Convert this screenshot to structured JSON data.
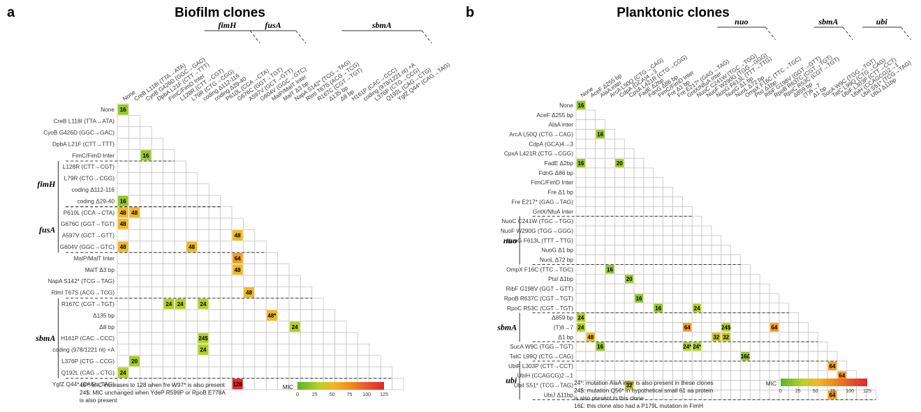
{
  "panels": [
    {
      "letter": "a",
      "title": "Biofilm clones",
      "rows": [
        "None",
        "CreB  L118I (TTA→ATA)",
        "CyoB  G426D (GGC→GAC)",
        "DpbA  L21F (CTT→TTT)",
        "FimC/FimD Inter",
        "L128R (CTT→CGT)",
        "L79R (CTG→CGG)",
        "coding  Δ112-116",
        "coding Δ29-40",
        "P610L (CCA→CTA)",
        "G676C (GGT→TGT)",
        "A597V (GCT→GTT)",
        "G604V (GGC→GTC)",
        "MalP/MalT Inter",
        "MalT  Δ3 bp",
        "NapA  S142* (TCG→TAG)",
        "RlmI  T67S (ACG→TCG)",
        "R167C (CGT→TGT)",
        "Δ135 bp",
        "Δ8 bp",
        "H161P (CAC→CCC)",
        "coding (978/1221 nt) +A",
        "L376P (CTG→CCG)",
        "Q192L (CAG→CTG)",
        "YgfZ  Q44* (CAG→TAG)"
      ],
      "columns": [
        "None",
        "CreB  L118I (TTA→ATA)",
        "CyoB  G426D (GGC→GAC)",
        "DpbA  L21F (CTT→TTT)",
        "FimC/FimD Inter",
        "L128R (CTT→CGT)",
        "L79R (CTG→CGG)",
        "coding  Δ112-116",
        "coding Δ29-40",
        "P610L (CCA→CTA)",
        "G676C (GGT→TGT)",
        "A597V (GCT→GTT)",
        "G604V (GGC→GTC)",
        "MalP/MalT Inter",
        "MalT  Δ3 bp",
        "NapA  S142* (TCG→TAG)",
        "RlmI  T67S (ACG→TCG)",
        "R167C (CGT→TGT)",
        "Δ135 bp",
        "Δ8 bp",
        "H161P (CAC→CCC)",
        "coding (978/1221 nt) +A",
        "L376P (CTG→CCG)",
        "Q192L (CAG→CTG)",
        "YgfZ  Q44* (CAG→TAG)"
      ],
      "row_groups": [
        {
          "name": "fimH",
          "start": 5,
          "end": 8
        },
        {
          "name": "fusA",
          "start": 9,
          "end": 12
        },
        {
          "name": "sbmA",
          "start": 17,
          "end": 23
        }
      ],
      "col_groups": [
        {
          "name": "fimH",
          "start": 5,
          "end": 8
        },
        {
          "name": "fusA",
          "start": 9,
          "end": 12
        },
        {
          "name": "sbmA",
          "start": 17,
          "end": 23
        }
      ],
      "cells": [
        {
          "r": 0,
          "c": 0,
          "v": 16,
          "label": "16"
        },
        {
          "r": 4,
          "c": 2,
          "v": 16,
          "label": "16"
        },
        {
          "r": 8,
          "c": 0,
          "v": 16,
          "label": "16"
        },
        {
          "r": 9,
          "c": 0,
          "v": 48,
          "label": "48"
        },
        {
          "r": 9,
          "c": 1,
          "v": 48,
          "label": "48"
        },
        {
          "r": 10,
          "c": 0,
          "v": 48,
          "label": "48"
        },
        {
          "r": 11,
          "c": 10,
          "v": 48,
          "label": "48"
        },
        {
          "r": 12,
          "c": 0,
          "v": 48,
          "label": "48"
        },
        {
          "r": 12,
          "c": 6,
          "v": 48,
          "label": "48"
        },
        {
          "r": 13,
          "c": 10,
          "v": 64,
          "label": "64"
        },
        {
          "r": 14,
          "c": 10,
          "v": 48,
          "label": "48"
        },
        {
          "r": 16,
          "c": 11,
          "v": 48,
          "label": "48"
        },
        {
          "r": 17,
          "c": 4,
          "v": 24,
          "label": "24"
        },
        {
          "r": 17,
          "c": 5,
          "v": 24,
          "label": "24"
        },
        {
          "r": 17,
          "c": 7,
          "v": 24,
          "label": "24"
        },
        {
          "r": 18,
          "c": 13,
          "v": 48,
          "label": "48*"
        },
        {
          "r": 19,
          "c": 15,
          "v": 24,
          "label": "24"
        },
        {
          "r": 20,
          "c": 7,
          "v": 24,
          "label": "24$"
        },
        {
          "r": 21,
          "c": 7,
          "v": 24,
          "label": "24"
        },
        {
          "r": 22,
          "c": 1,
          "v": 20,
          "label": "20"
        },
        {
          "r": 23,
          "c": 0,
          "v": 24,
          "label": "24"
        },
        {
          "r": 24,
          "c": 10,
          "v": 128,
          "label": "128"
        }
      ],
      "notes": [
        "48*: MIC increases to 128 when fre W97* is also present",
        "24$: MIC unchanged when YdeP R599P or RpoB E778A",
        "is also present"
      ],
      "legend": {
        "title": "MIC",
        "ticks": [
          "0",
          "25",
          "50",
          "75",
          "100",
          "125"
        ]
      }
    },
    {
      "letter": "b",
      "title": "Planktonic clones",
      "rows": [
        "None",
        "AceF  Δ255 bp",
        "AlaA inter",
        "ArcA  L50Q (CTG→CAG)",
        "CdpA  (GCA)4→3",
        "CpxA  L421R (CTG→CGG)",
        "FadE  Δ2bp",
        "FdnG  Δ86 bp",
        "FimC/FimD Inter",
        "Fre  Δ1 bp",
        "Fre  E217* (GAG→TAG)",
        "GntX/NfuA Inter",
        "NuoC  C241W (TGC→TGG)",
        "NuoF  W290G (TGG→GGG)",
        "NuoG  F613L (TTT→TTG)",
        "NuoG  Δ1 bp",
        "NuoL  Δ72 bp",
        "OmpX  F16C (TTC→TGC)",
        "PtsI  Δ1bp",
        "RibF  G198V (GGT→GTT)",
        "RpoB  R637C (CGT→TGT)",
        "RpoC  R53C (CGT→TGT)",
        "Δ859 bp",
        "(T)6→7",
        "Δ1 bp",
        "SucA  W9C (TGG→TGT)",
        "TatC  L99Q (CTG→CAG)",
        "UbiF  L303P (CTT→CCT)",
        "UbiH   (CCAGCG)2→1",
        "UbiI  S51* (TCG→TAG)",
        "UbiJ  Δ11bp"
      ],
      "columns": [
        "None",
        "AceF  Δ255 bp",
        "AlaA inter",
        "ArcA  L50Q (CTG→CAG)",
        "CdpA  (GCA)4→3",
        "CpxA  L421R (CTG→CGG)",
        "FadE  Δ2bp",
        "FdnG  Δ86 bp",
        "FimC/FimD Inter",
        "Fre  Δ1 bp",
        "Fre  E217* (GAG→TAG)",
        "GntX/NfuA Inter",
        "NuoC  C241W (TGC→TGG)",
        "NuoF  W290G (TGG→GGG)",
        "NuoG  F613L (TTT→TTG)",
        "NuoG  Δ1 bp",
        "NuoL  Δ72 bp",
        "OmpX  F16C (TTC→TGC)",
        "PtsI  Δ1bp",
        "RibF  G198V (GGT→GTT)",
        "RpoB  R637C (CGT→TGT)",
        "RpoC  R53C (CGT→TGT)",
        "Δ859 bp",
        "(T)6→7",
        "Δ1 bp",
        "SucA  W9C (TGG→TGT)",
        "TatC  L99Q (CTG→CAG)",
        "UbiF  L303P (CTT→CCT)",
        "UbiH   (CCAGCG)2→1",
        "UbiI  S51* (TCG→TAG)",
        "UbiJ  Δ11bp"
      ],
      "row_groups": [
        {
          "name": "nuo",
          "start": 12,
          "end": 16
        },
        {
          "name": "sbmA",
          "start": 22,
          "end": 24
        },
        {
          "name": "ubi",
          "start": 27,
          "end": 30
        }
      ],
      "col_groups": [
        {
          "name": "nuo",
          "start": 12,
          "end": 16
        },
        {
          "name": "sbmA",
          "start": 22,
          "end": 24
        },
        {
          "name": "ubi",
          "start": 27,
          "end": 30
        }
      ],
      "cells": [
        {
          "r": 0,
          "c": 0,
          "v": 16,
          "label": "16"
        },
        {
          "r": 3,
          "c": 2,
          "v": 16,
          "label": "16"
        },
        {
          "r": 6,
          "c": 0,
          "v": 16,
          "label": "16"
        },
        {
          "r": 6,
          "c": 4,
          "v": 20,
          "label": "20"
        },
        {
          "r": 17,
          "c": 3,
          "v": 16,
          "label": "16"
        },
        {
          "r": 18,
          "c": 5,
          "v": 20,
          "label": "20"
        },
        {
          "r": 20,
          "c": 6,
          "v": 16,
          "label": "16"
        },
        {
          "r": 21,
          "c": 8,
          "v": 16,
          "label": "16"
        },
        {
          "r": 21,
          "c": 12,
          "v": 24,
          "label": "24"
        },
        {
          "r": 22,
          "c": 0,
          "v": 24,
          "label": "24"
        },
        {
          "r": 23,
          "c": 0,
          "v": 24,
          "label": "24"
        },
        {
          "r": 23,
          "c": 11,
          "v": 64,
          "label": "64"
        },
        {
          "r": 23,
          "c": 15,
          "v": 24,
          "label": "24$"
        },
        {
          "r": 23,
          "c": 20,
          "v": 64,
          "label": "64"
        },
        {
          "r": 24,
          "c": 1,
          "v": 48,
          "label": "48"
        },
        {
          "r": 24,
          "c": 14,
          "v": 32,
          "label": "32"
        },
        {
          "r": 24,
          "c": 15,
          "v": 32,
          "label": "32"
        },
        {
          "r": 25,
          "c": 2,
          "v": 16,
          "label": "16"
        },
        {
          "r": 25,
          "c": 11,
          "v": 24,
          "label": "24*"
        },
        {
          "r": 25,
          "c": 12,
          "v": 24,
          "label": "24*"
        },
        {
          "r": 26,
          "c": 17,
          "v": 16,
          "label": "16£"
        },
        {
          "r": 27,
          "c": 26,
          "v": 64,
          "label": "64"
        },
        {
          "r": 28,
          "c": 27,
          "v": 64,
          "label": "64"
        },
        {
          "r": 29,
          "c": 5,
          "v": 32,
          "label": "32"
        },
        {
          "r": 30,
          "c": 26,
          "v": 64,
          "label": "64"
        }
      ],
      "notes": [
        "24*: mutation AlaA inter is also present in these clones",
        "24$: mutation Q56* in hypothetical small 61 aa protein",
        "is also present in this clone",
        "16£: this clone also had a P179L mutation in FimH"
      ],
      "legend": {
        "title": "MIC",
        "ticks": [
          "0",
          "25",
          "50",
          "75",
          "100",
          "125"
        ]
      }
    }
  ]
}
